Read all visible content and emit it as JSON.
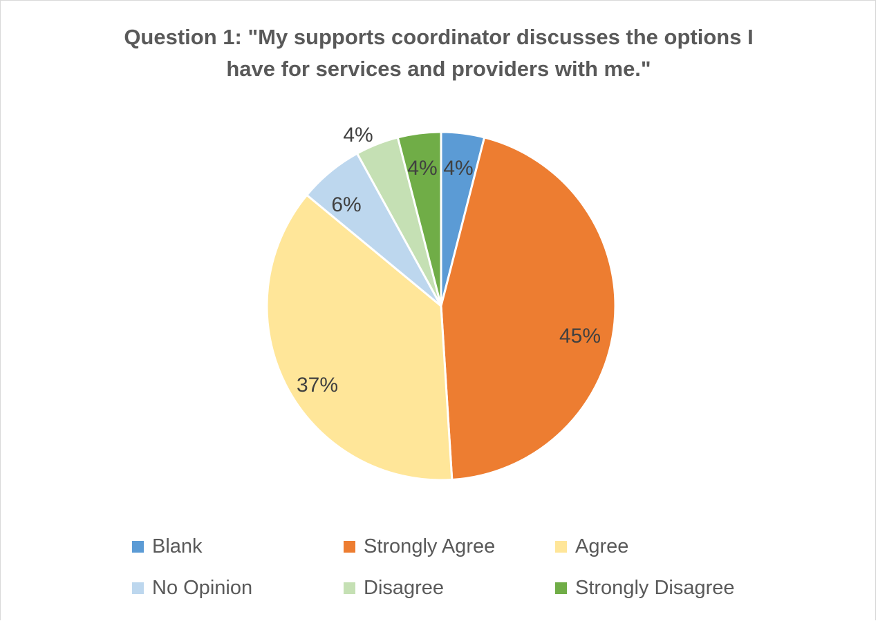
{
  "chart_data": {
    "type": "pie",
    "title_lines": [
      "Question 1: \"My supports coordinator discusses the options I",
      "have for services and providers with me.\""
    ],
    "slices": [
      {
        "name": "Blank",
        "value": 4,
        "label": "4%",
        "color": "#5B9BD5"
      },
      {
        "name": "Strongly Agree",
        "value": 45,
        "label": "45%",
        "color": "#ED7D31"
      },
      {
        "name": "Agree",
        "value": 37,
        "label": "37%",
        "color": "#FFE699"
      },
      {
        "name": "No Opinion",
        "value": 6,
        "label": "6%",
        "color": "#BDD7EE"
      },
      {
        "name": "Disagree",
        "value": 4,
        "label": "4%",
        "color": "#C5E0B4"
      },
      {
        "name": "Strongly Disagree",
        "value": 4,
        "label": "4%",
        "color": "#70AD47"
      }
    ],
    "legend_placement": "bottom"
  }
}
